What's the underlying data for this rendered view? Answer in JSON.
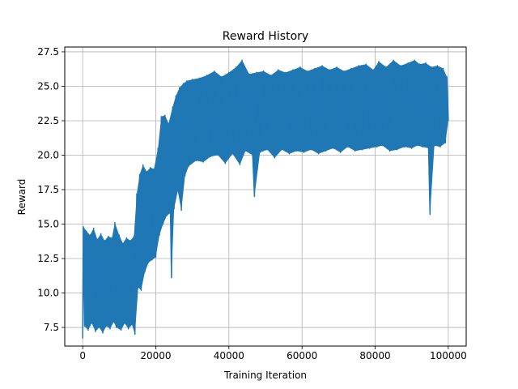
{
  "chart_data": {
    "type": "line",
    "title": "Reward History",
    "xlabel": "Training Iteration",
    "ylabel": "Reward",
    "xlim": [
      -4900,
      104900
    ],
    "ylim": [
      6.15,
      27.85
    ],
    "xticks": [
      0,
      20000,
      40000,
      60000,
      80000,
      100000
    ],
    "xtick_labels": [
      "0",
      "20000",
      "40000",
      "60000",
      "80000",
      "100000"
    ],
    "yticks": [
      7.5,
      10.0,
      12.5,
      15.0,
      17.5,
      20.0,
      22.5,
      25.0,
      27.5
    ],
    "ytick_labels": [
      "7.5",
      "10.0",
      "12.5",
      "15.0",
      "17.5",
      "20.0",
      "22.5",
      "25.0",
      "27.5"
    ],
    "grid": true,
    "line_color": "#1f77b4",
    "series": [
      {
        "points": [
          [
            0,
            6.7
          ],
          [
            200,
            14.8
          ],
          [
            500,
            7.6
          ],
          [
            1000,
            14.5
          ],
          [
            1500,
            7.3
          ],
          [
            2000,
            14.2
          ],
          [
            2500,
            7.8
          ],
          [
            3000,
            14.7
          ],
          [
            3500,
            7.2
          ],
          [
            4000,
            13.9
          ],
          [
            4500,
            7.5
          ],
          [
            5000,
            14.3
          ],
          [
            5500,
            7.1
          ],
          [
            6000,
            13.8
          ],
          [
            6500,
            7.6
          ],
          [
            7000,
            14.1
          ],
          [
            7500,
            7.4
          ],
          [
            8000,
            14.0
          ],
          [
            8500,
            7.9
          ],
          [
            8800,
            15.1
          ],
          [
            9200,
            7.5
          ],
          [
            10000,
            14.2
          ],
          [
            10500,
            7.3
          ],
          [
            11000,
            13.6
          ],
          [
            11500,
            7.8
          ],
          [
            12000,
            14.0
          ],
          [
            12500,
            7.4
          ],
          [
            13000,
            13.8
          ],
          [
            13500,
            7.7
          ],
          [
            14000,
            14.1
          ],
          [
            14300,
            7.0
          ],
          [
            14800,
            17.2
          ],
          [
            15200,
            10.4
          ],
          [
            15600,
            18.6
          ],
          [
            16000,
            10.2
          ],
          [
            16500,
            19.3
          ],
          [
            17000,
            11.5
          ],
          [
            17500,
            18.8
          ],
          [
            18000,
            12.2
          ],
          [
            18500,
            19.1
          ],
          [
            19000,
            12.4
          ],
          [
            19500,
            19.0
          ],
          [
            20000,
            12.6
          ],
          [
            20600,
            20.5
          ],
          [
            21000,
            14.2
          ],
          [
            21500,
            22.8
          ],
          [
            22000,
            15.0
          ],
          [
            22500,
            22.9
          ],
          [
            23000,
            15.6
          ],
          [
            23500,
            22.3
          ],
          [
            24000,
            15.8
          ],
          [
            24300,
            11.1
          ],
          [
            24600,
            23.5
          ],
          [
            25000,
            16.1
          ],
          [
            25500,
            24.3
          ],
          [
            26000,
            17.4
          ],
          [
            26500,
            24.9
          ],
          [
            27000,
            16.0
          ],
          [
            27500,
            25.2
          ],
          [
            28000,
            18.5
          ],
          [
            28500,
            25.4
          ],
          [
            29000,
            19.2
          ],
          [
            30000,
            25.5
          ],
          [
            31000,
            19.6
          ],
          [
            32000,
            25.6
          ],
          [
            33000,
            19.5
          ],
          [
            34000,
            25.8
          ],
          [
            35000,
            19.9
          ],
          [
            36000,
            26.1
          ],
          [
            37000,
            20.0
          ],
          [
            38000,
            25.7
          ],
          [
            39000,
            19.4
          ],
          [
            40000,
            26.0
          ],
          [
            41000,
            20.1
          ],
          [
            42000,
            26.4
          ],
          [
            43000,
            19.3
          ],
          [
            43600,
            26.9
          ],
          [
            44500,
            20.3
          ],
          [
            45500,
            25.9
          ],
          [
            46500,
            20.0
          ],
          [
            47000,
            17.0
          ],
          [
            47500,
            26.0
          ],
          [
            48500,
            20.2
          ],
          [
            49500,
            26.1
          ],
          [
            50500,
            20.4
          ],
          [
            51500,
            25.8
          ],
          [
            52500,
            19.8
          ],
          [
            53500,
            26.2
          ],
          [
            54500,
            20.4
          ],
          [
            55500,
            26.0
          ],
          [
            56500,
            20.1
          ],
          [
            57500,
            26.2
          ],
          [
            58500,
            20.3
          ],
          [
            59500,
            26.4
          ],
          [
            60500,
            20.2
          ],
          [
            61500,
            26.1
          ],
          [
            62500,
            20.4
          ],
          [
            63500,
            26.3
          ],
          [
            64500,
            20.1
          ],
          [
            65500,
            26.5
          ],
          [
            66500,
            20.3
          ],
          [
            67500,
            26.2
          ],
          [
            68500,
            20.5
          ],
          [
            69500,
            26.4
          ],
          [
            70500,
            20.2
          ],
          [
            71500,
            26.1
          ],
          [
            72500,
            20.6
          ],
          [
            73500,
            26.3
          ],
          [
            74500,
            20.3
          ],
          [
            75500,
            26.5
          ],
          [
            76500,
            20.4
          ],
          [
            77500,
            26.6
          ],
          [
            78500,
            20.5
          ],
          [
            79500,
            26.2
          ],
          [
            80500,
            20.6
          ],
          [
            81000,
            26.8
          ],
          [
            82000,
            20.7
          ],
          [
            83000,
            26.4
          ],
          [
            84000,
            20.3
          ],
          [
            85000,
            26.9
          ],
          [
            86000,
            20.4
          ],
          [
            87000,
            26.5
          ],
          [
            88000,
            20.6
          ],
          [
            89000,
            26.7
          ],
          [
            90000,
            20.5
          ],
          [
            90800,
            26.9
          ],
          [
            91500,
            20.7
          ],
          [
            92200,
            26.6
          ],
          [
            93000,
            20.6
          ],
          [
            93800,
            26.7
          ],
          [
            94600,
            20.5
          ],
          [
            95000,
            15.7
          ],
          [
            95400,
            26.4
          ],
          [
            96200,
            20.7
          ],
          [
            97000,
            26.5
          ],
          [
            97800,
            20.6
          ],
          [
            98600,
            26.3
          ],
          [
            99200,
            20.9
          ],
          [
            99600,
            25.7
          ],
          [
            100000,
            22.5
          ]
        ]
      }
    ]
  }
}
